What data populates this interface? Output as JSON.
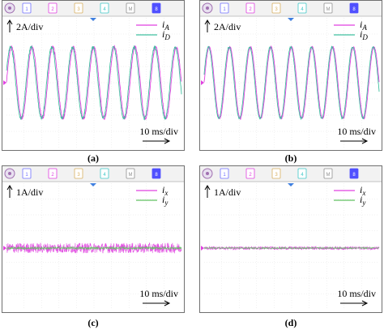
{
  "figure": {
    "panels": [
      {
        "caption": "(a)",
        "scale_label": "2A/div",
        "time_label": "10 ms/div",
        "channel_buttons": [
          "1",
          "2",
          "3",
          "4",
          "M",
          "8"
        ],
        "chart_data": {
          "type": "line",
          "title": "",
          "xlabel": "10 ms/div",
          "ylabel": "2A/div",
          "x_unit": "ms",
          "xlim": [
            0,
            100
          ],
          "y_unit": "A",
          "ylim": [
            -8,
            8
          ],
          "grid": true,
          "legend_position": "top-right",
          "series": [
            {
              "name": "i_A",
              "color": "#e040e0",
              "kind": "sine",
              "amplitude": 4.4,
              "frequency_hz": 85,
              "phase_deg": 0,
              "ripple": 0.15
            },
            {
              "name": "i_D",
              "color": "#40c0a0",
              "kind": "sine",
              "amplitude": 4.4,
              "frequency_hz": 85,
              "phase_deg": 18,
              "ripple": 0.15
            }
          ]
        }
      },
      {
        "caption": "(b)",
        "scale_label": "2A/div",
        "time_label": "10 ms/div",
        "channel_buttons": [
          "1",
          "2",
          "3",
          "4",
          "M",
          "8"
        ],
        "chart_data": {
          "type": "line",
          "title": "",
          "xlabel": "10 ms/div",
          "ylabel": "2A/div",
          "x_unit": "ms",
          "xlim": [
            0,
            100
          ],
          "y_unit": "A",
          "ylim": [
            -8,
            8
          ],
          "grid": true,
          "legend_position": "top-right",
          "series": [
            {
              "name": "i_A",
              "color": "#e040e0",
              "kind": "sine",
              "amplitude": 4.4,
              "frequency_hz": 85,
              "phase_deg": 0,
              "ripple": 0.08
            },
            {
              "name": "i_D",
              "color": "#40c0a0",
              "kind": "sine",
              "amplitude": 4.4,
              "frequency_hz": 85,
              "phase_deg": 14,
              "ripple": 0.08
            }
          ]
        }
      },
      {
        "caption": "(c)",
        "scale_label": "1A/div",
        "time_label": "10 ms/div",
        "channel_buttons": [
          "1",
          "2",
          "3",
          "4",
          "M",
          "8"
        ],
        "chart_data": {
          "type": "line",
          "title": "",
          "xlabel": "10 ms/div",
          "ylabel": "1A/div",
          "x_unit": "ms",
          "xlim": [
            0,
            100
          ],
          "y_unit": "A",
          "ylim": [
            -4,
            4
          ],
          "grid": true,
          "legend_position": "top-right",
          "series": [
            {
              "name": "i_x",
              "color": "#e040e0",
              "kind": "noise",
              "level": -0.1,
              "amplitude": 0.32
            },
            {
              "name": "i_y",
              "color": "#60c060",
              "kind": "noise",
              "level": -0.1,
              "amplitude": 0.08
            }
          ]
        }
      },
      {
        "caption": "(d)",
        "scale_label": "1A/div",
        "time_label": "10 ms/div",
        "channel_buttons": [
          "1",
          "2",
          "3",
          "4",
          "M",
          "8"
        ],
        "chart_data": {
          "type": "line",
          "title": "",
          "xlabel": "10 ms/div",
          "ylabel": "1A/div",
          "x_unit": "ms",
          "xlim": [
            0,
            100
          ],
          "y_unit": "A",
          "ylim": [
            -4,
            4
          ],
          "grid": true,
          "legend_position": "top-right",
          "series": [
            {
              "name": "i_x",
              "color": "#e040e0",
              "kind": "noise",
              "level": -0.1,
              "amplitude": 0.1
            },
            {
              "name": "i_y",
              "color": "#60c060",
              "kind": "noise",
              "level": -0.1,
              "amplitude": 0.04
            }
          ]
        }
      }
    ]
  }
}
